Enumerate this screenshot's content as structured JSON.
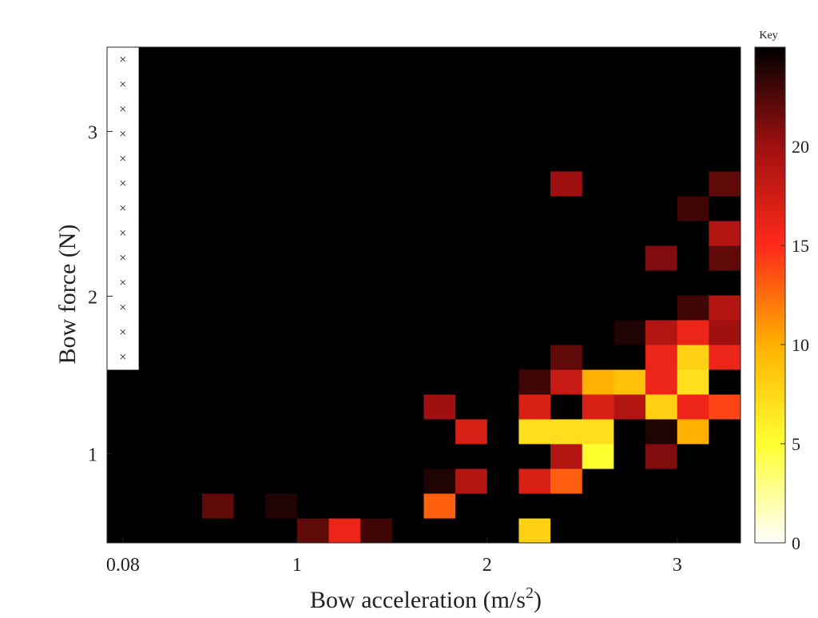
{
  "chart_data": {
    "type": "heatmap",
    "xlabel": "Bow acceleration (m/s",
    "xlabel_sup": "2",
    "xlabel_close": ")",
    "ylabel": "Bow force (N)",
    "x_ticks": [
      {
        "label": "0.08",
        "col": 0.5
      },
      {
        "label": "1",
        "col": 6.0
      },
      {
        "label": "2",
        "col": 12.0
      },
      {
        "label": "3",
        "col": 18.0
      }
    ],
    "y_ticks": [
      {
        "label": "1",
        "row_from_bottom": 3.6
      },
      {
        "label": "2",
        "row_from_bottom": 9.95
      },
      {
        "label": "3",
        "row_from_bottom": 16.6
      }
    ],
    "grid": {
      "cols": 20,
      "rows": 20,
      "base_value": 25,
      "empty_region": {
        "cols": [
          0
        ],
        "rows_from_bottom_min": 7
      }
    },
    "excluded_marker": "×",
    "cells": [
      {
        "c": 3,
        "r": 1,
        "v": 22
      },
      {
        "c": 5,
        "r": 1,
        "v": 24
      },
      {
        "c": 6,
        "r": 0,
        "v": 22
      },
      {
        "c": 7,
        "r": 0,
        "v": 16
      },
      {
        "c": 8,
        "r": 0,
        "v": 23
      },
      {
        "c": 10,
        "r": 1,
        "v": 13
      },
      {
        "c": 10,
        "r": 2,
        "v": 24
      },
      {
        "c": 10,
        "r": 5,
        "v": 20
      },
      {
        "c": 11,
        "r": 2,
        "v": 19
      },
      {
        "c": 11,
        "r": 4,
        "v": 17
      },
      {
        "c": 13,
        "r": 0,
        "v": 8
      },
      {
        "c": 13,
        "r": 2,
        "v": 17
      },
      {
        "c": 13,
        "r": 4,
        "v": 7
      },
      {
        "c": 13,
        "r": 5,
        "v": 17
      },
      {
        "c": 13,
        "r": 6,
        "v": 23
      },
      {
        "c": 14,
        "r": 2,
        "v": 13
      },
      {
        "c": 14,
        "r": 3,
        "v": 19
      },
      {
        "c": 14,
        "r": 4,
        "v": 7
      },
      {
        "c": 14,
        "r": 6,
        "v": 18
      },
      {
        "c": 14,
        "r": 7,
        "v": 22
      },
      {
        "c": 14,
        "r": 14,
        "v": 20
      },
      {
        "c": 15,
        "r": 3,
        "v": 5
      },
      {
        "c": 15,
        "r": 4,
        "v": 7
      },
      {
        "c": 15,
        "r": 5,
        "v": 17
      },
      {
        "c": 15,
        "r": 6,
        "v": 10
      },
      {
        "c": 16,
        "r": 5,
        "v": 19
      },
      {
        "c": 16,
        "r": 6,
        "v": 9
      },
      {
        "c": 16,
        "r": 8,
        "v": 24
      },
      {
        "c": 17,
        "r": 3,
        "v": 21
      },
      {
        "c": 17,
        "r": 4,
        "v": 24
      },
      {
        "c": 17,
        "r": 5,
        "v": 8
      },
      {
        "c": 17,
        "r": 6,
        "v": 16
      },
      {
        "c": 17,
        "r": 7,
        "v": 16
      },
      {
        "c": 17,
        "r": 8,
        "v": 19
      },
      {
        "c": 17,
        "r": 11,
        "v": 21
      },
      {
        "c": 18,
        "r": 4,
        "v": 10
      },
      {
        "c": 18,
        "r": 5,
        "v": 16
      },
      {
        "c": 18,
        "r": 6,
        "v": 7
      },
      {
        "c": 18,
        "r": 7,
        "v": 8
      },
      {
        "c": 18,
        "r": 8,
        "v": 16
      },
      {
        "c": 18,
        "r": 9,
        "v": 23
      },
      {
        "c": 18,
        "r": 13,
        "v": 23
      },
      {
        "c": 19,
        "r": 5,
        "v": 14
      },
      {
        "c": 19,
        "r": 7,
        "v": 16
      },
      {
        "c": 19,
        "r": 8,
        "v": 20
      },
      {
        "c": 19,
        "r": 9,
        "v": 19
      },
      {
        "c": 19,
        "r": 11,
        "v": 22
      },
      {
        "c": 19,
        "r": 12,
        "v": 19
      },
      {
        "c": 19,
        "r": 14,
        "v": 22
      }
    ],
    "colorbar": {
      "title": "Key",
      "min": 0,
      "max": 25,
      "ticks": [
        0,
        5,
        10,
        15,
        20
      ],
      "colormap": "hot-reversed"
    }
  }
}
